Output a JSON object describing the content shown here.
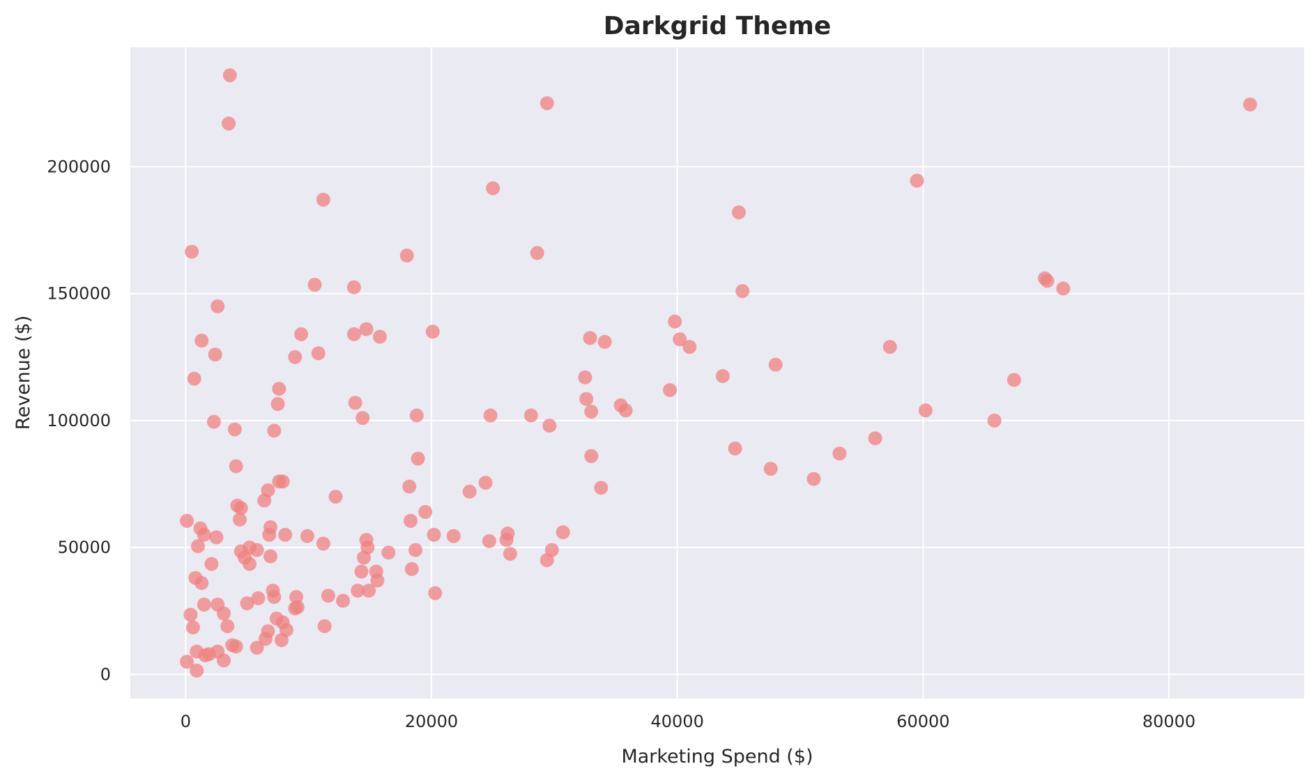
{
  "chart_data": {
    "type": "scatter",
    "title": "Darkgrid Theme",
    "xlabel": "Marketing Spend ($)",
    "ylabel": "Revenue ($)",
    "xlim": [
      -4500,
      91000
    ],
    "ylim": [
      -9500,
      247000
    ],
    "xticks": [
      0,
      20000,
      40000,
      60000,
      80000
    ],
    "yticks": [
      0,
      50000,
      100000,
      150000,
      200000
    ],
    "xtick_labels": [
      "0",
      "20000",
      "40000",
      "60000",
      "80000"
    ],
    "ytick_labels": [
      "0",
      "50000",
      "100000",
      "150000",
      "200000"
    ],
    "grid": true,
    "background": "#eaeaf2",
    "point_color": "#f08080",
    "points": [
      [
        3600,
        236000
      ],
      [
        3500,
        217000
      ],
      [
        29400,
        225000
      ],
      [
        86600,
        224500
      ],
      [
        59500,
        194500
      ],
      [
        25000,
        191500
      ],
      [
        11200,
        187000
      ],
      [
        45000,
        182000
      ],
      [
        500,
        166500
      ],
      [
        28600,
        166000
      ],
      [
        18000,
        165000
      ],
      [
        69900,
        156000
      ],
      [
        70100,
        155000
      ],
      [
        71400,
        152000
      ],
      [
        10500,
        153500
      ],
      [
        13700,
        152500
      ],
      [
        45300,
        151000
      ],
      [
        2600,
        145000
      ],
      [
        39800,
        139000
      ],
      [
        14700,
        136000
      ],
      [
        20100,
        135000
      ],
      [
        13700,
        134000
      ],
      [
        9400,
        134000
      ],
      [
        15800,
        133000
      ],
      [
        32900,
        132500
      ],
      [
        40200,
        132000
      ],
      [
        34100,
        131000
      ],
      [
        1300,
        131500
      ],
      [
        57300,
        129000
      ],
      [
        41000,
        129000
      ],
      [
        10800,
        126500
      ],
      [
        2400,
        126000
      ],
      [
        8900,
        125000
      ],
      [
        48000,
        122000
      ],
      [
        43700,
        117500
      ],
      [
        32500,
        117000
      ],
      [
        67400,
        116000
      ],
      [
        700,
        116500
      ],
      [
        7600,
        112500
      ],
      [
        39400,
        112000
      ],
      [
        32600,
        108500
      ],
      [
        13800,
        107000
      ],
      [
        7500,
        106500
      ],
      [
        35400,
        106000
      ],
      [
        35800,
        104000
      ],
      [
        33000,
        103500
      ],
      [
        60200,
        104000
      ],
      [
        24800,
        102000
      ],
      [
        28100,
        102000
      ],
      [
        18800,
        102000
      ],
      [
        14400,
        101000
      ],
      [
        65800,
        100000
      ],
      [
        2300,
        99500
      ],
      [
        29600,
        98000
      ],
      [
        4000,
        96500
      ],
      [
        7200,
        96000
      ],
      [
        44700,
        89000
      ],
      [
        53200,
        87000
      ],
      [
        56100,
        93000
      ],
      [
        33000,
        86000
      ],
      [
        18900,
        85000
      ],
      [
        4100,
        82000
      ],
      [
        47600,
        81000
      ],
      [
        51100,
        77000
      ],
      [
        7600,
        76000
      ],
      [
        7900,
        76000
      ],
      [
        24400,
        75500
      ],
      [
        18200,
        74000
      ],
      [
        33800,
        73500
      ],
      [
        6700,
        72500
      ],
      [
        23100,
        72000
      ],
      [
        12200,
        70000
      ],
      [
        6400,
        68500
      ],
      [
        4200,
        66500
      ],
      [
        4500,
        65500
      ],
      [
        19500,
        64000
      ],
      [
        100,
        60500
      ],
      [
        18300,
        60500
      ],
      [
        4400,
        61000
      ],
      [
        1200,
        57500
      ],
      [
        6900,
        58000
      ],
      [
        30700,
        56000
      ],
      [
        26200,
        55500
      ],
      [
        1500,
        55000
      ],
      [
        8100,
        55000
      ],
      [
        6800,
        55000
      ],
      [
        9900,
        54500
      ],
      [
        20200,
        55000
      ],
      [
        21800,
        54500
      ],
      [
        2500,
        54000
      ],
      [
        14700,
        53000
      ],
      [
        26100,
        53000
      ],
      [
        24700,
        52500
      ],
      [
        11200,
        51500
      ],
      [
        1000,
        50500
      ],
      [
        5200,
        50000
      ],
      [
        14800,
        50000
      ],
      [
        5800,
        49000
      ],
      [
        29800,
        49000
      ],
      [
        18700,
        49000
      ],
      [
        4500,
        48500
      ],
      [
        16500,
        48000
      ],
      [
        26400,
        47500
      ],
      [
        4800,
        46000
      ],
      [
        6900,
        46500
      ],
      [
        14500,
        46000
      ],
      [
        29400,
        45000
      ],
      [
        5200,
        43500
      ],
      [
        2100,
        43500
      ],
      [
        18400,
        41500
      ],
      [
        14300,
        40500
      ],
      [
        15500,
        40500
      ],
      [
        800,
        38000
      ],
      [
        15600,
        37000
      ],
      [
        1300,
        36000
      ],
      [
        7100,
        33000
      ],
      [
        14000,
        33000
      ],
      [
        14900,
        33000
      ],
      [
        20300,
        32000
      ],
      [
        11600,
        31000
      ],
      [
        7200,
        30500
      ],
      [
        9000,
        30500
      ],
      [
        5900,
        30000
      ],
      [
        12800,
        29000
      ],
      [
        5000,
        28000
      ],
      [
        1500,
        27500
      ],
      [
        2600,
        27500
      ],
      [
        9100,
        26500
      ],
      [
        8900,
        26000
      ],
      [
        3100,
        24000
      ],
      [
        400,
        23500
      ],
      [
        7400,
        22000
      ],
      [
        7900,
        20500
      ],
      [
        600,
        18500
      ],
      [
        3400,
        19000
      ],
      [
        11300,
        19000
      ],
      [
        8200,
        17500
      ],
      [
        6700,
        17000
      ],
      [
        6500,
        14000
      ],
      [
        7800,
        13500
      ],
      [
        3800,
        11500
      ],
      [
        4100,
        11000
      ],
      [
        5800,
        10500
      ],
      [
        900,
        9000
      ],
      [
        2600,
        9000
      ],
      [
        1900,
        8000
      ],
      [
        1600,
        7500
      ],
      [
        3100,
        5500
      ],
      [
        100,
        5000
      ],
      [
        900,
        1500
      ]
    ]
  }
}
